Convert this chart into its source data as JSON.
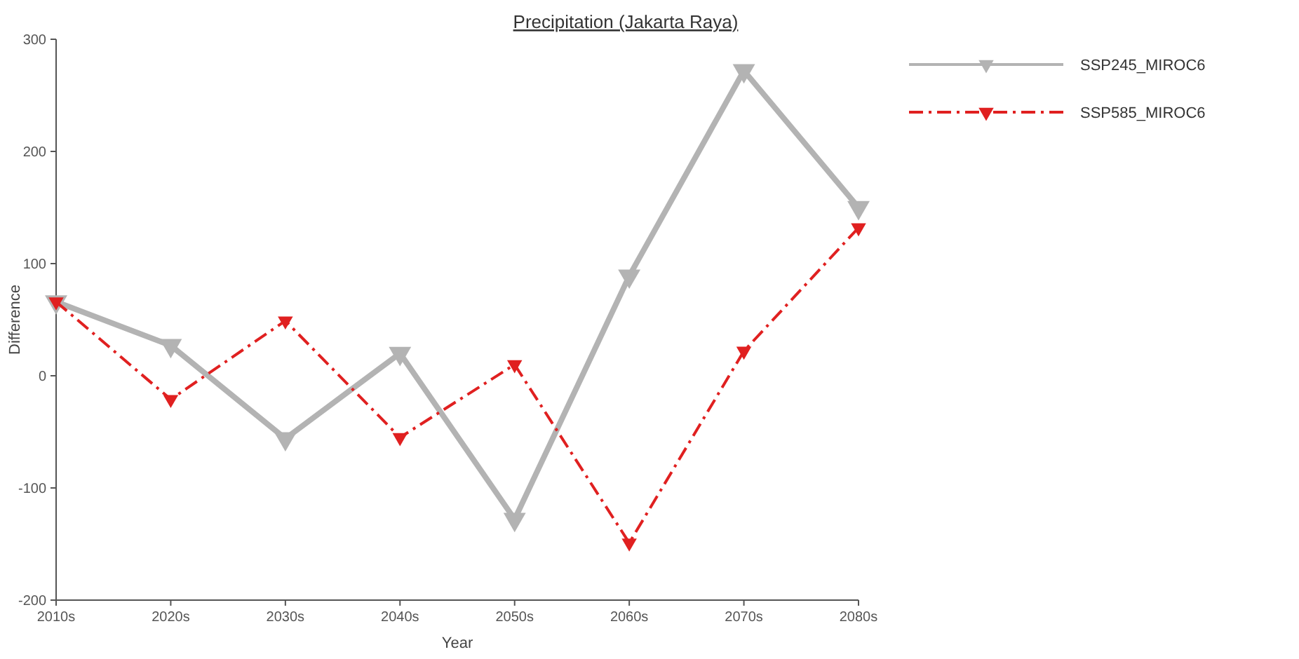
{
  "chart_data": {
    "type": "line",
    "title": "Precipitation (Jakarta Raya)",
    "xlabel": "Year",
    "ylabel": "Difference",
    "categories": [
      "2010s",
      "2020s",
      "2030s",
      "2040s",
      "2050s",
      "2060s",
      "2070s",
      "2080s"
    ],
    "ylim": [
      -200,
      300
    ],
    "yticks": [
      -200,
      -100,
      0,
      100,
      200,
      300
    ],
    "grid": false,
    "legend": "right",
    "marker": "triangle",
    "series": [
      {
        "name": "SSP245_MIROC6",
        "color": "#b3b3b3",
        "line_style": "solid",
        "values": [
          66,
          27,
          -56,
          20,
          -128,
          89,
          272,
          150
        ]
      },
      {
        "name": "SSP585_MIROC6",
        "color": "#e02020",
        "line_style": "dashed",
        "values": [
          66,
          -21,
          49,
          -55,
          10,
          -149,
          22,
          132
        ]
      }
    ]
  }
}
